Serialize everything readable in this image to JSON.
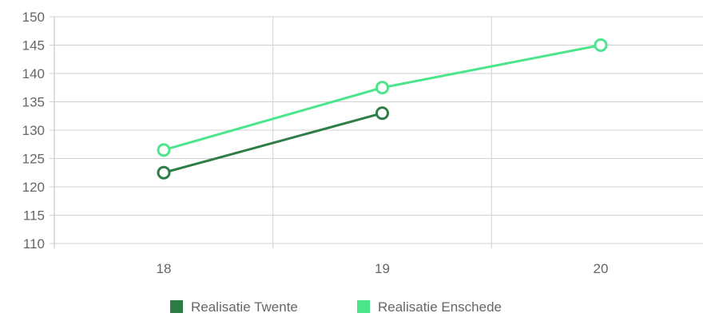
{
  "chart_data": {
    "type": "line",
    "x": [
      18,
      19,
      20
    ],
    "x_tick_labels": [
      "18",
      "19",
      "20"
    ],
    "ylim": [
      110,
      150
    ],
    "y_ticks": [
      110,
      115,
      120,
      125,
      130,
      135,
      140,
      145,
      150
    ],
    "y_tick_labels": [
      "110",
      "115",
      "120",
      "125",
      "130",
      "135",
      "140",
      "145",
      "150"
    ],
    "grid": true,
    "legend_position": "bottom",
    "series": [
      {
        "name": "Realisatie Twente",
        "color": "#2e7d46",
        "points": [
          {
            "x": 18,
            "y": 122.5
          },
          {
            "x": 19,
            "y": 133
          }
        ]
      },
      {
        "name": "Realisatie Enschede",
        "color": "#4ce58c",
        "points": [
          {
            "x": 18,
            "y": 126.5
          },
          {
            "x": 19,
            "y": 137.5
          },
          {
            "x": 20,
            "y": 145
          }
        ]
      }
    ],
    "grid_color": "#d0d0d0",
    "axis_color": "#bfbfbf",
    "text_color": "#666666"
  }
}
